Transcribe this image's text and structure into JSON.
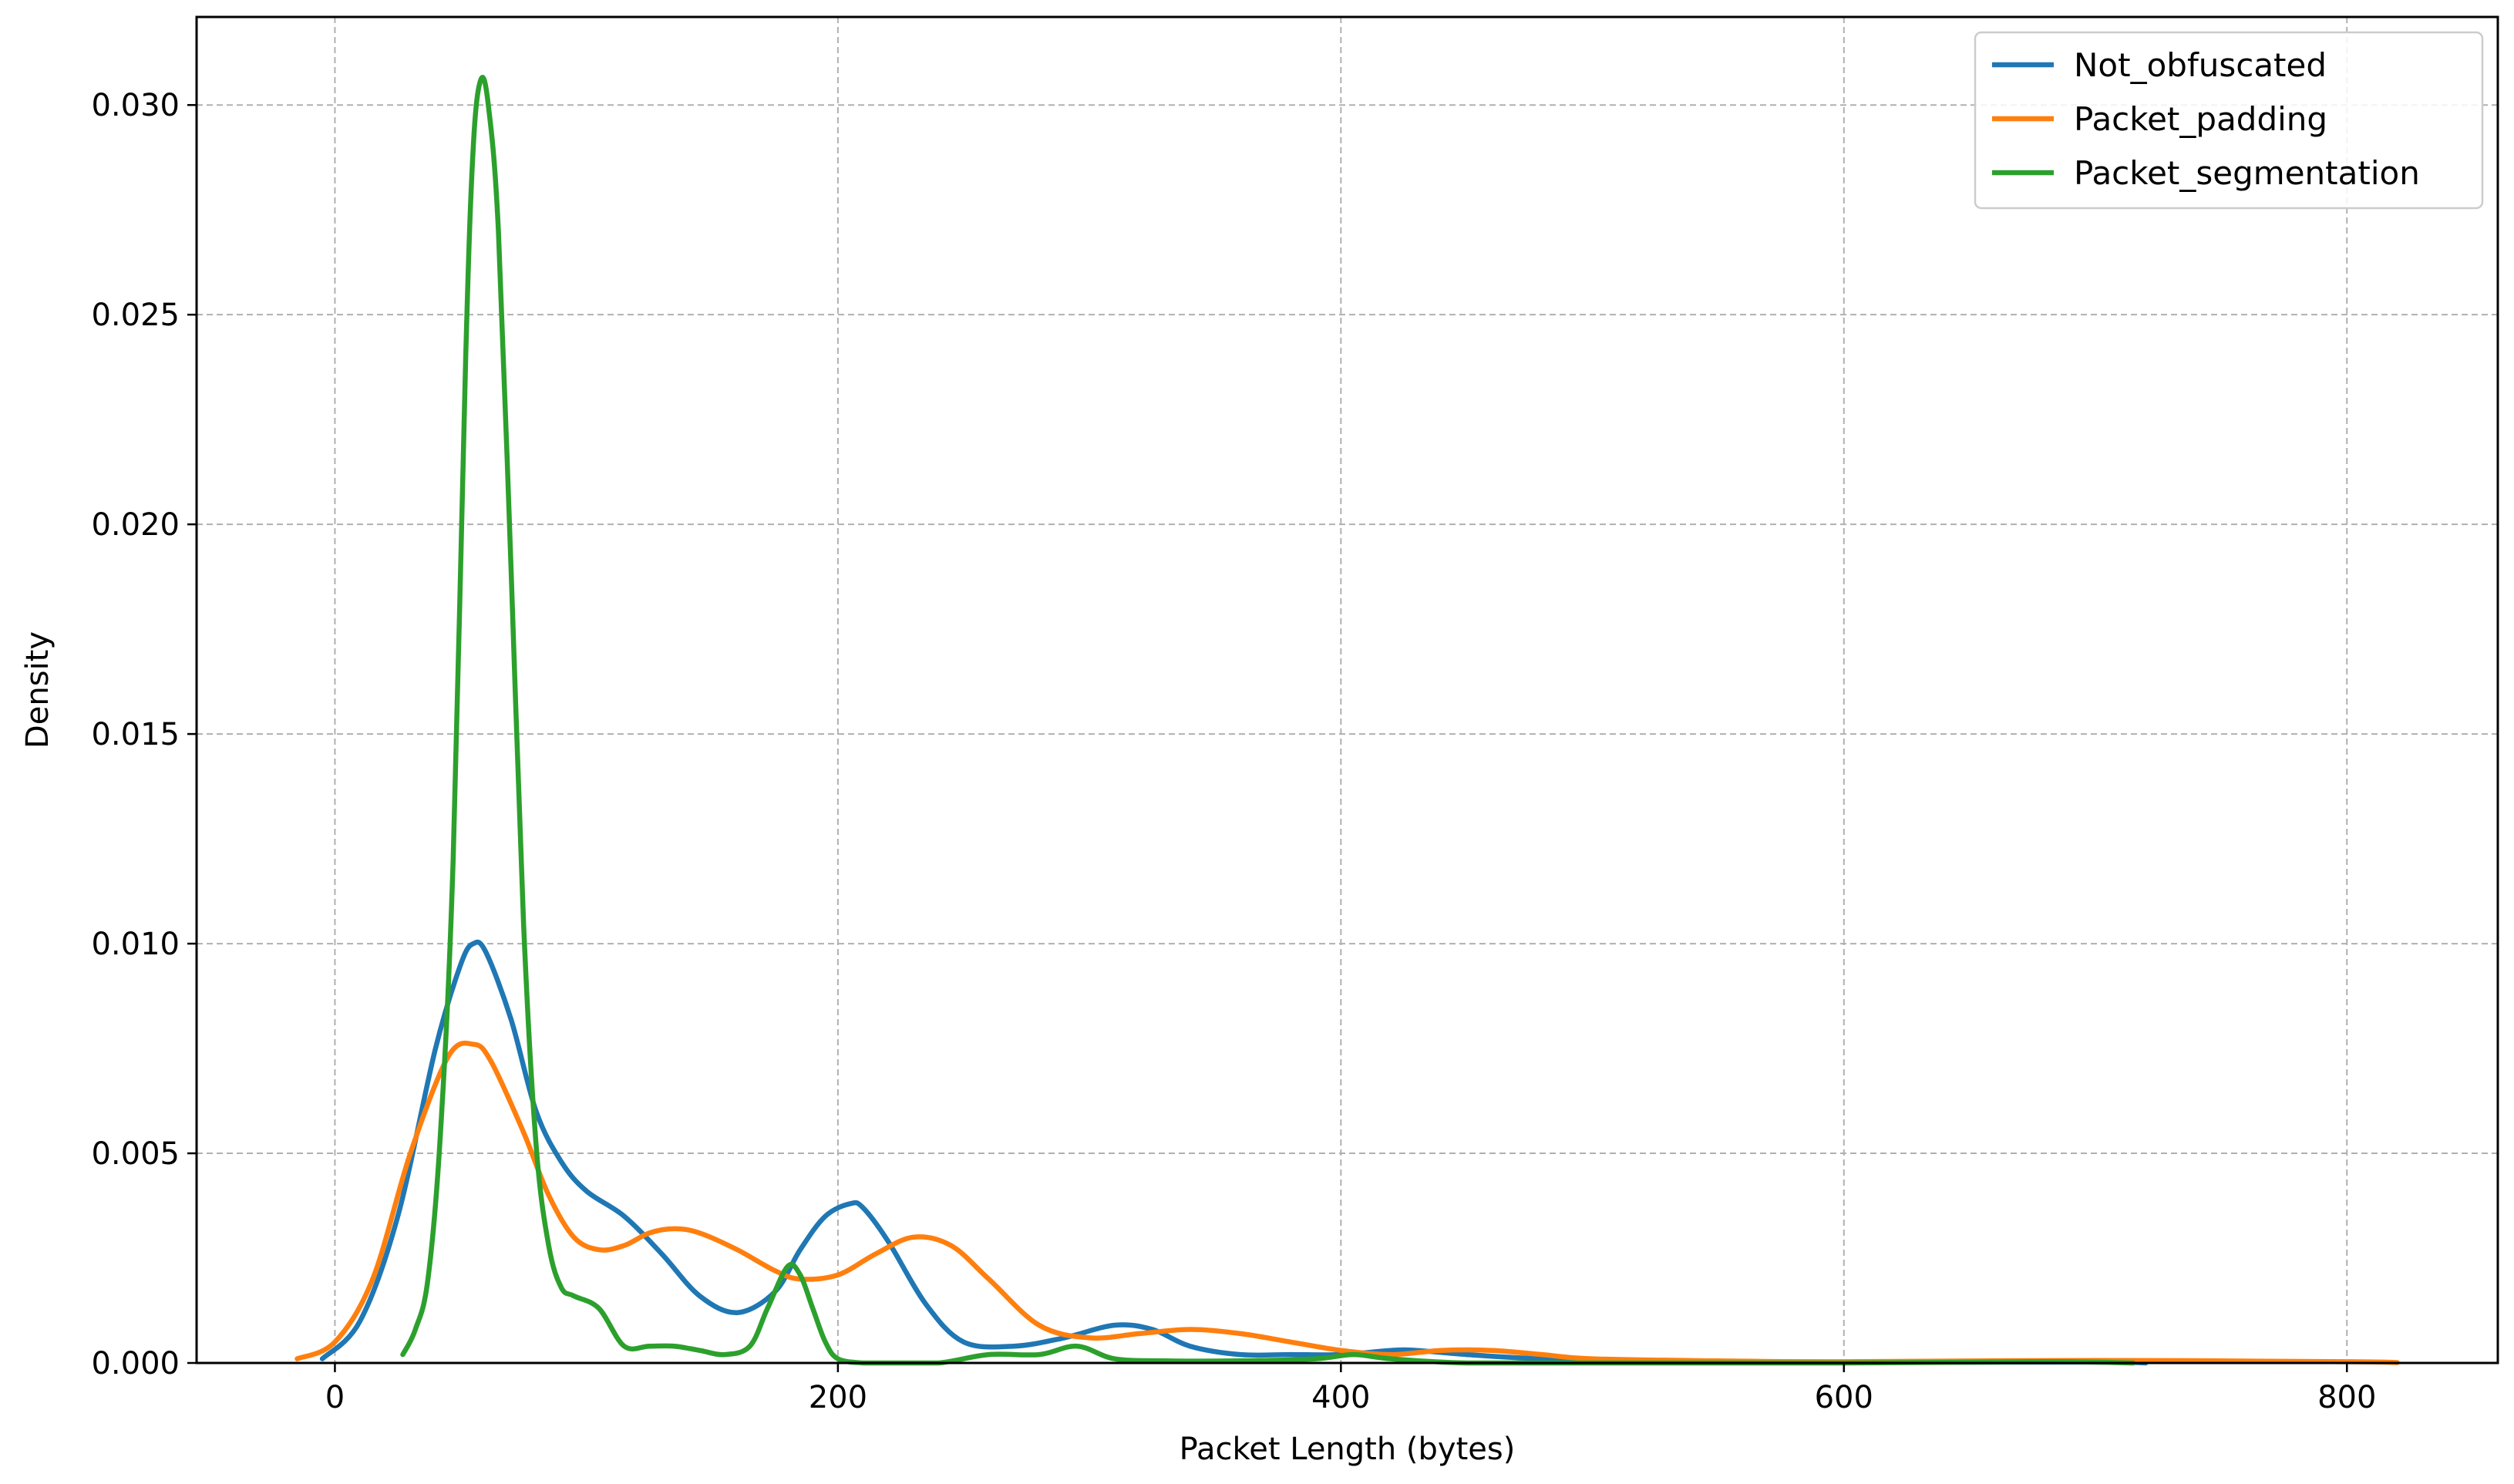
{
  "chart_data": {
    "type": "line",
    "title": "",
    "xlabel": "Packet Length (bytes)",
    "ylabel": "Density",
    "xlim": [
      -55,
      860
    ],
    "ylim": [
      0,
      0.0321
    ],
    "xticks": [
      0,
      200,
      400,
      600,
      800
    ],
    "xtick_labels": [
      "0",
      "200",
      "400",
      "600",
      "800"
    ],
    "yticks": [
      0,
      0.005,
      0.01,
      0.015,
      0.02,
      0.025,
      0.03
    ],
    "ytick_labels": [
      "0.000",
      "0.005",
      "0.010",
      "0.015",
      "0.020",
      "0.025",
      "0.030"
    ],
    "grid": true,
    "legend_position": "top-right",
    "series": [
      {
        "name": "Not_obfuscated",
        "color": "#1f77b4",
        "x": [
          -5,
          10,
          25,
          40,
          50,
          55,
          60,
          70,
          80,
          90,
          100,
          115,
          130,
          145,
          160,
          175,
          185,
          195,
          205,
          210,
          220,
          235,
          250,
          270,
          290,
          310,
          325,
          340,
          360,
          380,
          400,
          420,
          430,
          450,
          480,
          520,
          600,
          700,
          720
        ],
        "y": [
          0.0001,
          0.001,
          0.0035,
          0.0075,
          0.0095,
          0.01,
          0.0098,
          0.0082,
          0.006,
          0.0048,
          0.0041,
          0.0035,
          0.0026,
          0.0016,
          0.0012,
          0.0017,
          0.0027,
          0.0035,
          0.0038,
          0.0037,
          0.0029,
          0.0014,
          0.0005,
          0.0004,
          0.0006,
          0.0009,
          0.0008,
          0.0004,
          0.0002,
          0.0002,
          0.0002,
          0.0003,
          0.0003,
          0.0002,
          0.0001,
          5e-05,
          2e-05,
          2e-05,
          0.0
        ]
      },
      {
        "name": "Packet_padding",
        "color": "#ff7f0e",
        "x": [
          -15,
          0,
          15,
          30,
          45,
          55,
          62,
          75,
          85,
          95,
          105,
          115,
          125,
          135,
          145,
          160,
          175,
          185,
          200,
          215,
          230,
          245,
          260,
          280,
          300,
          320,
          340,
          360,
          380,
          400,
          420,
          440,
          460,
          480,
          500,
          550,
          600,
          700,
          800,
          820
        ],
        "y": [
          0.0001,
          0.0005,
          0.002,
          0.005,
          0.0073,
          0.0076,
          0.0072,
          0.0055,
          0.004,
          0.003,
          0.0027,
          0.0028,
          0.0031,
          0.0032,
          0.0031,
          0.0027,
          0.0022,
          0.002,
          0.0021,
          0.0026,
          0.003,
          0.0028,
          0.002,
          0.0009,
          0.0006,
          0.0007,
          0.0008,
          0.0007,
          0.0005,
          0.0003,
          0.0002,
          0.0003,
          0.0003,
          0.0002,
          0.0001,
          5e-05,
          3e-05,
          6e-05,
          3e-05,
          1e-05
        ]
      },
      {
        "name": "Packet_segmentation",
        "color": "#2ca02c",
        "x": [
          27,
          32,
          37,
          42,
          47,
          52,
          55,
          58,
          61,
          65,
          70,
          75,
          80,
          85,
          90,
          95,
          105,
          115,
          125,
          135,
          145,
          155,
          165,
          172,
          180,
          185,
          190,
          195,
          200,
          210,
          220,
          240,
          260,
          280,
          295,
          310,
          330,
          360,
          390,
          405,
          420,
          450,
          500,
          600,
          680,
          715
        ],
        "y": [
          0.0002,
          0.0008,
          0.002,
          0.0055,
          0.012,
          0.024,
          0.029,
          0.0306,
          0.03,
          0.027,
          0.019,
          0.0105,
          0.0052,
          0.0028,
          0.0018,
          0.0016,
          0.0013,
          0.0004,
          0.0004,
          0.0004,
          0.0003,
          0.0002,
          0.0004,
          0.0013,
          0.0023,
          0.0021,
          0.0013,
          0.0005,
          0.0001,
          0.0,
          0.0,
          0.0,
          0.0002,
          0.0002,
          0.0004,
          0.0001,
          5e-05,
          5e-05,
          0.0001,
          0.0002,
          0.0001,
          0.0,
          0.0,
          0.0,
          3e-05,
          0.0
        ]
      }
    ]
  }
}
